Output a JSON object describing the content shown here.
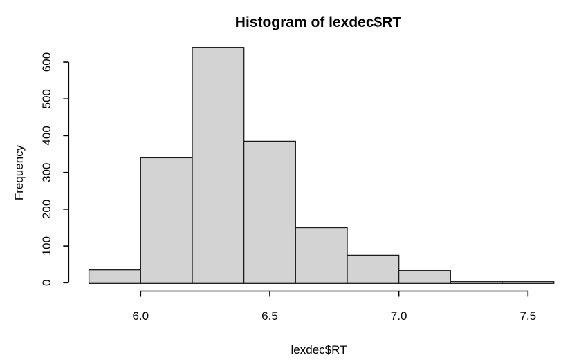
{
  "window": {
    "background_color": "#ffffff"
  },
  "chart_data": {
    "type": "bar",
    "subtype": "histogram",
    "title": "Histogram of lexdec$RT",
    "xlabel": "lexdec$RT",
    "ylabel": "Frequency",
    "bin_breaks": [
      5.8,
      6.0,
      6.2,
      6.4,
      6.6,
      6.8,
      7.0,
      7.2,
      7.4,
      7.6
    ],
    "values": [
      35,
      340,
      640,
      385,
      150,
      75,
      33,
      3,
      3
    ],
    "x_ticks": [
      6.0,
      6.5,
      7.0,
      7.5
    ],
    "x_tick_labels": [
      "6.0",
      "6.5",
      "7.0",
      "7.5"
    ],
    "y_ticks": [
      0,
      100,
      200,
      300,
      400,
      500,
      600
    ],
    "y_tick_labels": [
      "0",
      "100",
      "200",
      "300",
      "400",
      "500",
      "600"
    ],
    "xlim": [
      5.8,
      7.6
    ],
    "ylim": [
      0,
      600
    ],
    "grid": false,
    "legend": false,
    "bar_fill": "#d3d3d3",
    "bar_border": "#1a1a1a",
    "axis_color": "#000000",
    "text_color": "#000000",
    "background": "#ffffff"
  }
}
